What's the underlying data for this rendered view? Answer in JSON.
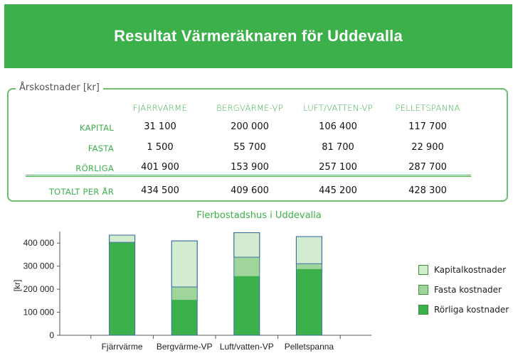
{
  "title": "Resultat Värmeräknaren för Uddevalla",
  "table": {
    "panel_title": "Årskostnader  [kr]",
    "columns": [
      "FJÄRRVÄRME",
      "BERGVÄRME-VP",
      "LUFT/VATTEN-VP",
      "PELLETSPANNA"
    ],
    "rows": [
      {
        "label": "KAPITAL",
        "values": [
          "31 100",
          "200 000",
          "106 400",
          "117 700"
        ]
      },
      {
        "label": "FASTA",
        "values": [
          "1 500",
          "55 700",
          "81 700",
          "22 900"
        ]
      },
      {
        "label": "RÖRLIGA",
        "values": [
          "401 900",
          "153 900",
          "257 100",
          "287 700"
        ]
      }
    ],
    "total": {
      "label": "TOTALT PER ÅR",
      "values": [
        "434 500",
        "409 600",
        "445 200",
        "428 300"
      ]
    }
  },
  "chart_data": {
    "type": "bar",
    "stacked": true,
    "title": "Flerbostadshus i Uddevalla",
    "ylabel": "[kr]",
    "xlabel": "",
    "ylim": [
      0,
      450000
    ],
    "yticks": [
      "0",
      "100 000",
      "200 000",
      "300 000",
      "400 000"
    ],
    "ytick_values": [
      0,
      100000,
      200000,
      300000,
      400000
    ],
    "categories": [
      "Fjärrvärme",
      "Bergvärme-VP",
      "Luft/vatten-VP",
      "Pelletspanna"
    ],
    "series": [
      {
        "name": "Rörliga kostnader",
        "values": [
          401900,
          153900,
          257100,
          287700
        ],
        "color": "#3cb04a"
      },
      {
        "name": "Fasta kostnader",
        "values": [
          1500,
          55700,
          81700,
          22900
        ],
        "color": "#9fd49b"
      },
      {
        "name": "Kapitalkostnader",
        "values": [
          31100,
          200000,
          106400,
          117700
        ],
        "color": "#d3ecd0"
      }
    ],
    "legend": [
      "Kapitalkostnader",
      "Fasta kostnader",
      "Rörliga kostnader"
    ],
    "legend_position": "right",
    "grid": false
  },
  "colors": {
    "accent": "#3cb04a",
    "bar_border": "#3b6fa0"
  }
}
